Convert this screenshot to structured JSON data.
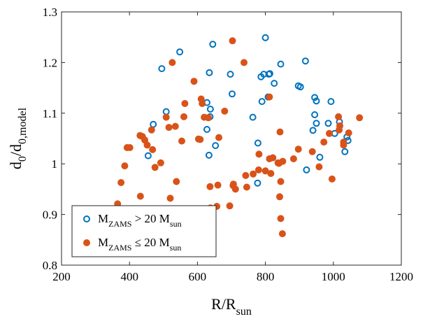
{
  "chart_data": {
    "type": "scatter",
    "xlabel": {
      "main": "R/R",
      "sub": "sun"
    },
    "ylabel": {
      "main": "d",
      "sub1": "0",
      "mid": "/d",
      "sub2": "0,model"
    },
    "xlim": [
      200,
      1200
    ],
    "ylim": [
      0.8,
      1.3
    ],
    "x_ticks": [
      200,
      400,
      600,
      800,
      1000,
      1200
    ],
    "x_tick_labels": [
      "200",
      "400",
      "600",
      "800",
      "1000",
      "1200"
    ],
    "y_ticks": [
      0.8,
      0.9,
      1.0,
      1.1,
      1.2,
      1.3
    ],
    "y_tick_labels": [
      "0.8",
      "0.9",
      "1",
      "1.1",
      "1.2",
      "1.3"
    ],
    "grid": false,
    "legend_position": "bottom-left",
    "colors": {
      "high_mass": "#0072bd",
      "low_mass": "#d95319"
    },
    "series": [
      {
        "marker": "open-circle",
        "color": "#0072bd",
        "legend": {
          "pre": "M",
          "sub": "ZAMS",
          "rel": " > 20 M",
          "sub2": "sun"
        },
        "points": [
          [
            470,
            1.078
          ],
          [
            495,
            1.188
          ],
          [
            508,
            1.103
          ],
          [
            548,
            1.221
          ],
          [
            455,
            1.016
          ],
          [
            628,
            1.121
          ],
          [
            645,
            1.236
          ],
          [
            635,
            1.18
          ],
          [
            638,
            1.108
          ],
          [
            637,
            1.093
          ],
          [
            628,
            1.068
          ],
          [
            634,
            1.017
          ],
          [
            653,
            1.036
          ],
          [
            697,
            1.177
          ],
          [
            702,
            1.138
          ],
          [
            763,
            1.092
          ],
          [
            787,
            1.172
          ],
          [
            800,
            1.249
          ],
          [
            795,
            1.177
          ],
          [
            810,
            1.177
          ],
          [
            813,
            1.178
          ],
          [
            826,
            1.159
          ],
          [
            790,
            1.123
          ],
          [
            808,
            1.132
          ],
          [
            778,
            1.041
          ],
          [
            777,
            0.962
          ],
          [
            845,
            1.197
          ],
          [
            918,
            1.203
          ],
          [
            897,
            1.154
          ],
          [
            903,
            1.152
          ],
          [
            921,
            0.988
          ],
          [
            945,
            1.131
          ],
          [
            950,
            1.124
          ],
          [
            945,
            1.097
          ],
          [
            950,
            1.08
          ],
          [
            940,
            1.066
          ],
          [
            960,
            1.013
          ],
          [
            993,
            1.123
          ],
          [
            985,
            1.08
          ],
          [
            1018,
            1.083
          ],
          [
            1004,
            1.06
          ],
          [
            1040,
            1.053
          ],
          [
            1043,
            1.046
          ],
          [
            1034,
            1.024
          ]
        ]
      },
      {
        "marker": "filled-circle",
        "color": "#d95319",
        "legend": {
          "pre": "M",
          "sub": "ZAMS",
          "rel": " ≤ 20 M",
          "sub2": "sun"
        },
        "points": [
          [
            365,
            0.921
          ],
          [
            375,
            0.963
          ],
          [
            386,
            0.996
          ],
          [
            393,
            1.032
          ],
          [
            401,
            1.032
          ],
          [
            431,
            1.056
          ],
          [
            438,
            1.054
          ],
          [
            432,
            0.936
          ],
          [
            445,
            1.047
          ],
          [
            452,
            1.037
          ],
          [
            465,
            1.067
          ],
          [
            468,
            1.028
          ],
          [
            475,
            0.993
          ],
          [
            492,
            1.002
          ],
          [
            508,
            1.092
          ],
          [
            516,
            1.072
          ],
          [
            520,
            0.932
          ],
          [
            526,
            1.2
          ],
          [
            535,
            1.074
          ],
          [
            538,
            0.965
          ],
          [
            554,
            1.045
          ],
          [
            560,
            1.093
          ],
          [
            563,
            1.119
          ],
          [
            590,
            1.163
          ],
          [
            603,
            1.049
          ],
          [
            611,
            1.128
          ],
          [
            608,
            1.048
          ],
          [
            620,
            1.092
          ],
          [
            614,
            1.119
          ],
          [
            632,
            1.091
          ],
          [
            637,
            0.955
          ],
          [
            638,
            0.913
          ],
          [
            660,
            0.958
          ],
          [
            663,
            1.052
          ],
          [
            657,
            0.916
          ],
          [
            695,
            0.917
          ],
          [
            680,
            1.104
          ],
          [
            703,
            1.243
          ],
          [
            706,
            0.96
          ],
          [
            712,
            0.95
          ],
          [
            705,
            0.957
          ],
          [
            737,
            1.2
          ],
          [
            742,
            0.977
          ],
          [
            745,
            0.954
          ],
          [
            764,
            0.98
          ],
          [
            781,
            1.019
          ],
          [
            780,
            0.988
          ],
          [
            800,
            0.986
          ],
          [
            812,
            1.132
          ],
          [
            812,
            1.01
          ],
          [
            816,
            0.981
          ],
          [
            822,
            1.012
          ],
          [
            837,
            1.002
          ],
          [
            840,
            1.001
          ],
          [
            842,
            0.935
          ],
          [
            843,
            1.063
          ],
          [
            845,
            0.965
          ],
          [
            845,
            0.892
          ],
          [
            851,
            1.005
          ],
          [
            850,
            0.862
          ],
          [
            883,
            1.01
          ],
          [
            897,
            1.029
          ],
          [
            938,
            1.024
          ],
          [
            958,
            0.994
          ],
          [
            972,
            1.043
          ],
          [
            988,
            1.06
          ],
          [
            996,
            0.97
          ],
          [
            1015,
            1.093
          ],
          [
            1019,
            1.075
          ],
          [
            1017,
            1.067
          ],
          [
            1030,
            1.043
          ],
          [
            1030,
            1.037
          ],
          [
            1045,
            1.061
          ],
          [
            1077,
            1.091
          ]
        ]
      }
    ]
  }
}
